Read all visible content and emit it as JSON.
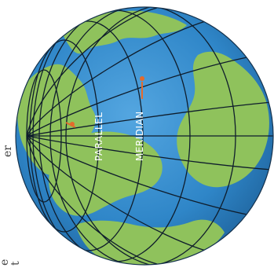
{
  "labels": {
    "parallel": "PARALLEL",
    "meridian": "MERIDIAN"
  },
  "margin_text": {
    "top": "er",
    "bottom_1": "e",
    "bottom_2": "t"
  },
  "colors": {
    "ocean": "#2f86c8",
    "land": "#8fc25c",
    "grid": "#0f1d2c",
    "marker": "#e46a2c"
  }
}
